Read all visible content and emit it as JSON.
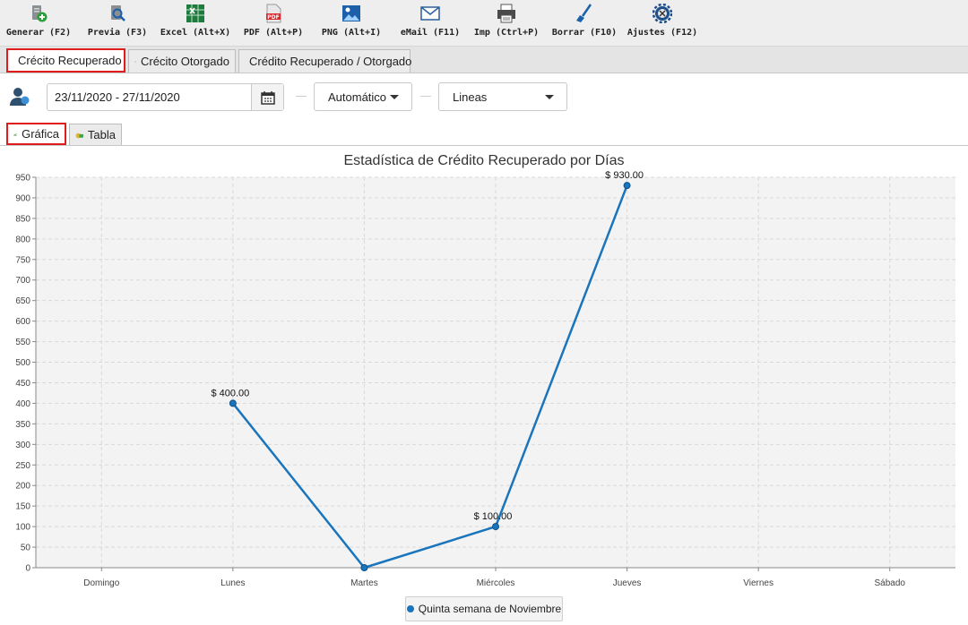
{
  "toolbar": {
    "buttons": [
      {
        "label": "Generar (F2)",
        "icon": "generate-icon"
      },
      {
        "label": "Previa (F3)",
        "icon": "preview-icon"
      },
      {
        "label": "Excel (Alt+X)",
        "icon": "excel-icon"
      },
      {
        "label": "PDF (Alt+P)",
        "icon": "pdf-icon"
      },
      {
        "label": "PNG (Alt+I)",
        "icon": "png-icon"
      },
      {
        "label": "eMail (F11)",
        "icon": "email-icon"
      },
      {
        "label": "Imp (Ctrl+P)",
        "icon": "printer-icon"
      },
      {
        "label": "Borrar (F10)",
        "icon": "broom-icon"
      },
      {
        "label": "Ajustes (F12)",
        "icon": "settings-icon"
      }
    ]
  },
  "main_tabs": [
    {
      "label": "Crécito Recuperado",
      "active": true
    },
    {
      "label": "Crécito Otorgado",
      "active": false
    },
    {
      "label": "Crédito Recuperado / Otorgado",
      "active": false
    }
  ],
  "filters": {
    "date_range": "23/11/2020 - 27/11/2020",
    "mode": "Automático",
    "chart_kind": "Lineas"
  },
  "sub_tabs": [
    {
      "label": "Gráfica",
      "active": true
    },
    {
      "label": "Tabla",
      "active": false
    }
  ],
  "colors": {
    "series": "#1a75bc",
    "highlight": "#e01d1d",
    "plot_bg": "#f3f3f3"
  },
  "chart_data": {
    "type": "line",
    "title": "Estadística de Crédito Recuperado por Días",
    "categories": [
      "Domingo",
      "Lunes",
      "Martes",
      "Miércoles",
      "Jueves",
      "Viernes",
      "Sábado"
    ],
    "series": [
      {
        "name": "Quinta semana de Noviembre",
        "points": [
          {
            "x": "Lunes",
            "y": 400,
            "label": "$ 400.00"
          },
          {
            "x": "Martes",
            "y": 0,
            "label": ""
          },
          {
            "x": "Miércoles",
            "y": 100,
            "label": "$ 100.00"
          },
          {
            "x": "Jueves",
            "y": 930,
            "label": "$ 930.00"
          }
        ]
      }
    ],
    "ylim": [
      0,
      950
    ],
    "yticks": [
      0,
      50,
      100,
      150,
      200,
      250,
      300,
      350,
      400,
      450,
      500,
      550,
      600,
      650,
      700,
      750,
      800,
      850,
      900,
      950
    ],
    "grid": true,
    "legend_position": "bottom"
  }
}
